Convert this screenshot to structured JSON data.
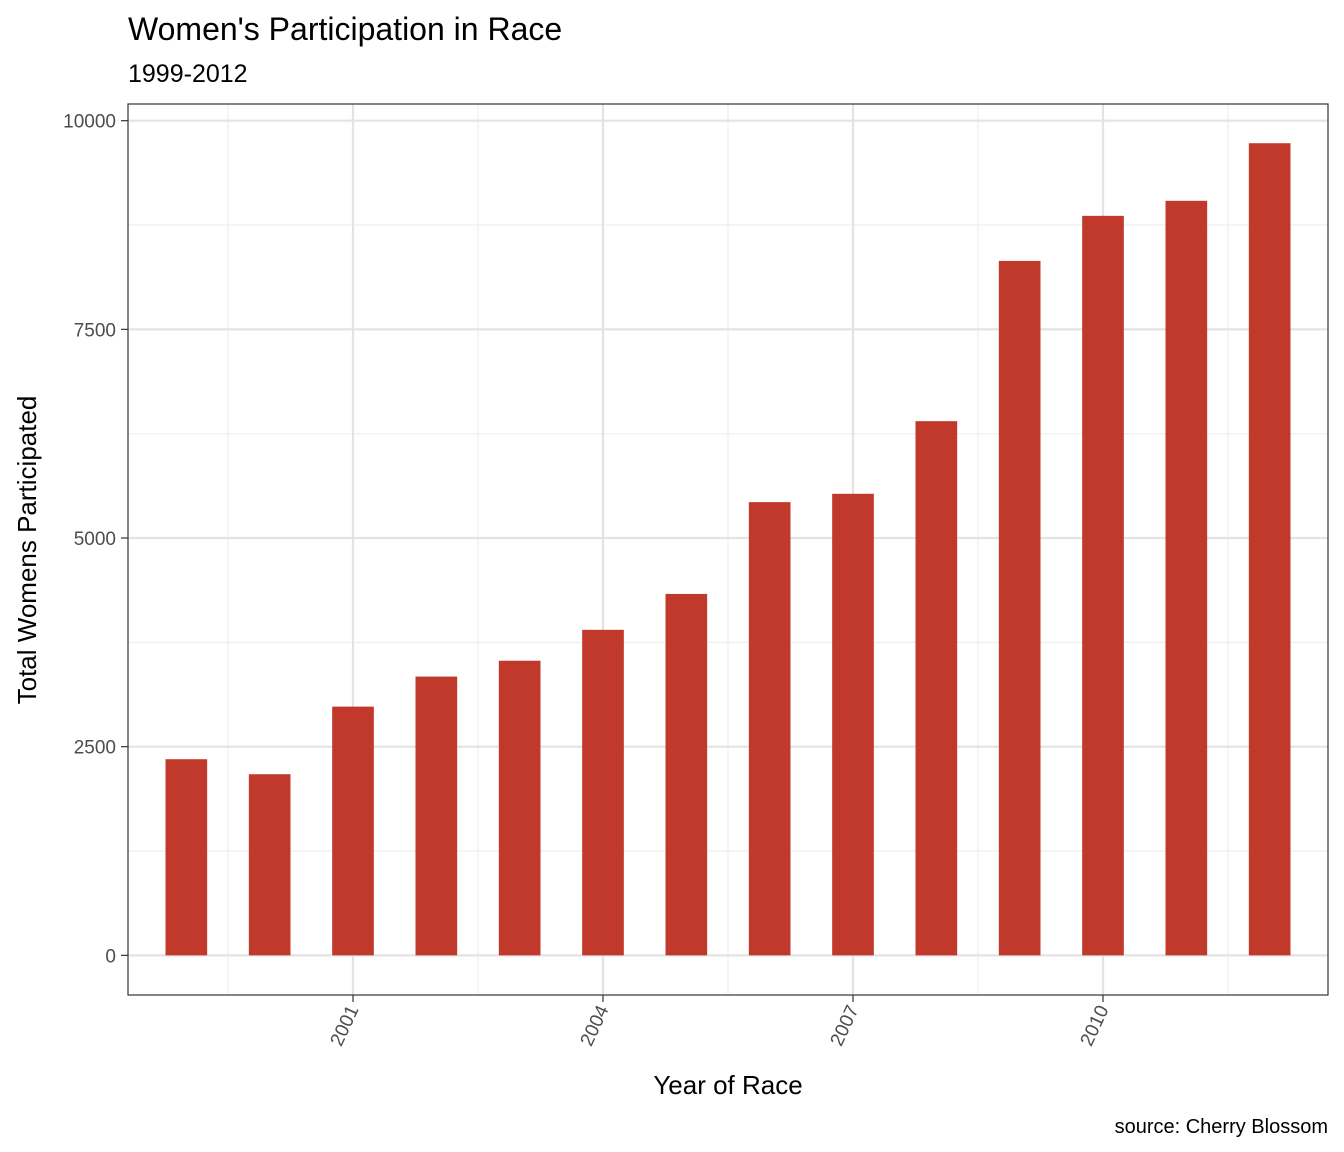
{
  "chart_data": {
    "type": "bar",
    "title": "Women's Participation in Race",
    "subtitle": "1999-2012",
    "xlabel": "Year of Race",
    "ylabel": "Total Womens Participated",
    "caption": "source: Cherry Blossom",
    "categories": [
      1999,
      2000,
      2001,
      2002,
      2003,
      2004,
      2005,
      2006,
      2007,
      2008,
      2009,
      2010,
      2011,
      2012
    ],
    "values": [
      2350,
      2170,
      2980,
      3340,
      3530,
      3900,
      4330,
      5430,
      5530,
      6400,
      8320,
      8860,
      9040,
      9730
    ],
    "x_ticks": [
      "2001",
      "2004",
      "2007",
      "2010"
    ],
    "y_ticks": [
      "0",
      "2500",
      "5000",
      "7500",
      "10000"
    ],
    "xlim": [
      1998.3,
      2012.7
    ],
    "ylim": [
      -475,
      10200
    ],
    "bar_color": "#c0392b",
    "grid": true,
    "legend": "none"
  }
}
